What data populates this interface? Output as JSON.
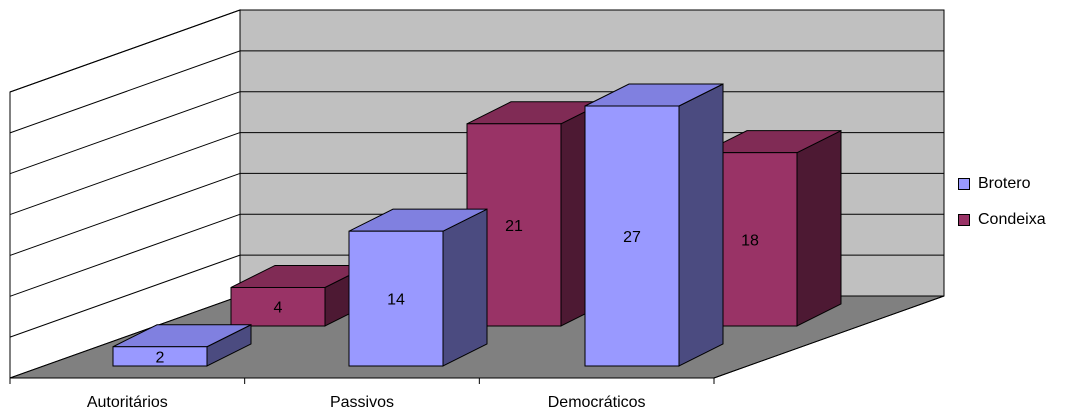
{
  "chart_data": {
    "type": "bar",
    "categories": [
      "Autoritários",
      "Passivos",
      "Democráticos"
    ],
    "series": [
      {
        "name": "Brotero",
        "values": [
          2,
          14,
          27
        ]
      },
      {
        "name": "Condeixa",
        "values": [
          4,
          21,
          18
        ]
      }
    ],
    "ylim": [
      0,
      27
    ],
    "grid": true,
    "three_d": true,
    "legend_position": "right",
    "colors": {
      "brotero_front": "#9999FF",
      "brotero_side": "#4B4B80",
      "brotero_top": "#8080E0",
      "condeixa_front": "#993366",
      "condeixa_side": "#4D1933",
      "condeixa_top": "#802B55",
      "back_wall": "#C0C0C0",
      "side_wall": "#FFFFFF",
      "floor": "#808080"
    }
  },
  "legend": {
    "items": [
      {
        "label": "Brotero",
        "color": "#9999FF"
      },
      {
        "label": "Condeixa",
        "color": "#993366"
      }
    ]
  }
}
